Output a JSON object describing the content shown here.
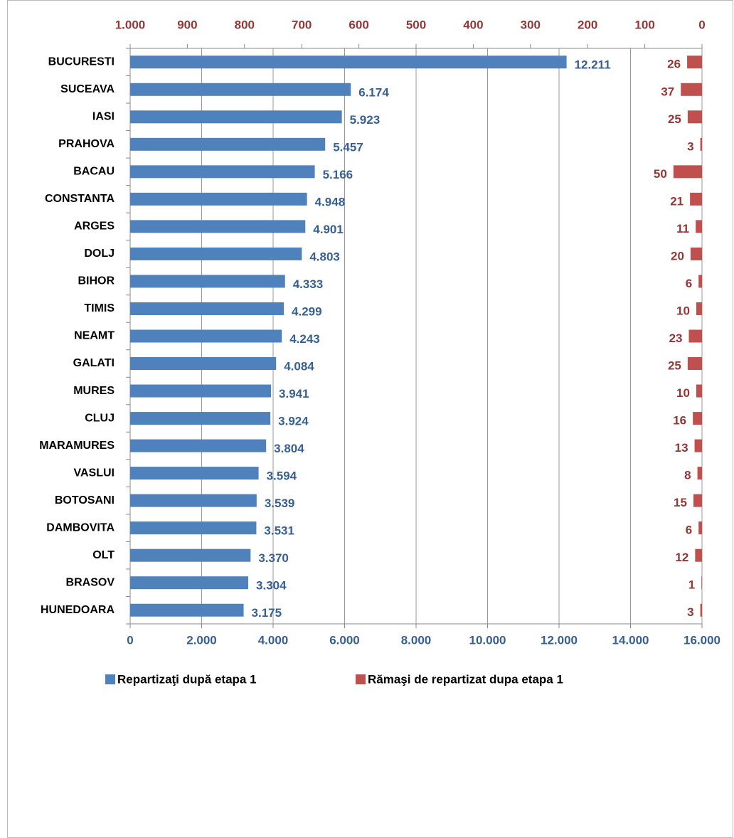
{
  "chart_data": {
    "type": "bar",
    "orientation": "horizontal",
    "categories": [
      "BUCURESTI",
      "SUCEAVA",
      "IASI",
      "PRAHOVA",
      "BACAU",
      "CONSTANTA",
      "ARGES",
      "DOLJ",
      "BIHOR",
      "TIMIS",
      "NEAMT",
      "GALATI",
      "MURES",
      "CLUJ",
      "MARAMURES",
      "VASLUI",
      "BOTOSANI",
      "DAMBOVITA",
      "OLT",
      "BRASOV",
      "HUNEDOARA"
    ],
    "series": [
      {
        "name": "Repartizaţi după etapa 1",
        "color": "#4f81bd",
        "axis": "x",
        "values": [
          12211,
          6174,
          5923,
          5457,
          5166,
          4948,
          4901,
          4803,
          4333,
          4299,
          4243,
          4084,
          3941,
          3924,
          3804,
          3594,
          3539,
          3531,
          3370,
          3304,
          3175
        ],
        "value_labels": [
          "12.211",
          "6.174",
          "5.923",
          "5.457",
          "5.166",
          "4.948",
          "4.901",
          "4.803",
          "4.333",
          "4.299",
          "4.243",
          "4.084",
          "3.941",
          "3.924",
          "3.804",
          "3.594",
          "3.539",
          "3.531",
          "3.370",
          "3.304",
          "3.175"
        ]
      },
      {
        "name": "Rămaşi de repartizat dupa etapa 1",
        "color": "#c0504d",
        "axis": "x2",
        "values": [
          26,
          37,
          25,
          3,
          50,
          21,
          11,
          20,
          6,
          10,
          23,
          25,
          10,
          16,
          13,
          8,
          15,
          6,
          12,
          1,
          3
        ]
      }
    ],
    "xlim": [
      0,
      16000
    ],
    "xticks": [
      0,
      {
        "value": 2000,
        "label": "2.000"
      },
      {
        "value": 4000,
        "label": "4.000"
      },
      {
        "value": 6000,
        "label": "6.000"
      },
      {
        "value": 8000,
        "label": "8.000"
      },
      {
        "value": 10000,
        "label": "10.000"
      },
      {
        "value": 12000,
        "label": "12.000"
      },
      {
        "value": 14000,
        "label": "14.000"
      },
      {
        "value": 16000,
        "label": "16.000"
      }
    ],
    "x2lim": [
      1000,
      0
    ],
    "x2ticks": [
      {
        "value": 1000,
        "label": "1.000"
      },
      900,
      800,
      700,
      600,
      500,
      400,
      300,
      200,
      100,
      0
    ],
    "grid": true,
    "legend": "bottom"
  }
}
